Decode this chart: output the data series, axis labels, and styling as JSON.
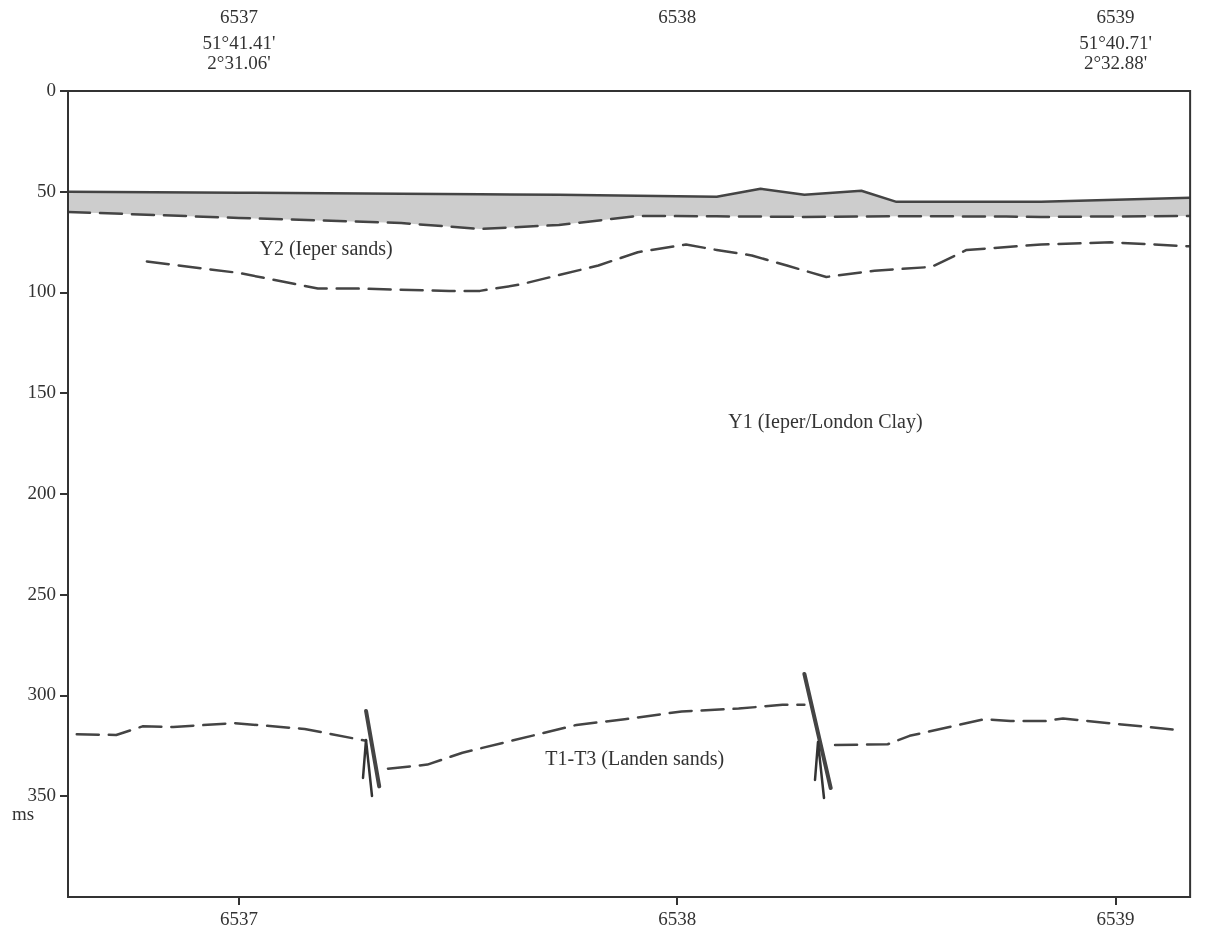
{
  "chart_data": {
    "type": "line",
    "xlim": [
      6536.61,
      6539.17
    ],
    "xticks": [
      6537,
      6538,
      6539
    ],
    "x2lim": [
      6536.61,
      6539.17
    ],
    "x2ticks": [
      6537,
      6538,
      6539
    ],
    "ylim": [
      400,
      0
    ],
    "yticks": [
      0,
      50,
      100,
      150,
      200,
      250,
      300,
      350
    ],
    "ylabel": "ms",
    "grid": false,
    "legend": false,
    "marker": "none",
    "series": [
      {
        "type": "line",
        "color": "#444444",
        "line_style": "solid",
        "x": [
          6536.61,
          6537.0,
          6537.37,
          6537.55,
          6537.73,
          6537.91,
          6538.09,
          6538.19,
          6538.29,
          6538.42,
          6538.5,
          6538.75,
          6538.83,
          6539.17
        ],
        "values": [
          50,
          50.5,
          51,
          51.2,
          51.5,
          52,
          52.5,
          48.5,
          51.5,
          49.5,
          55,
          55,
          55,
          53
        ]
      },
      {
        "type": "area",
        "color": "#444444",
        "line_style": "dashed",
        "x": [
          6536.61,
          6537.0,
          6537.37,
          6537.55,
          6537.73,
          6537.91,
          6538.09,
          6538.19,
          6538.29,
          6538.42,
          6538.5,
          6538.75,
          6538.83,
          6539.17
        ],
        "values": [
          60,
          63,
          65.5,
          68.5,
          66.5,
          62,
          62.2,
          62.3,
          62.5,
          62.3,
          62.1,
          62.3,
          62.5,
          62
        ]
      },
      {
        "type": "line",
        "color": "#444444",
        "line_style": "dashed",
        "x": [
          6536.79,
          6536.93,
          6537.0,
          6537.18,
          6537.26,
          6537.48,
          6537.55,
          6537.64,
          6537.82,
          6537.91,
          6538.02,
          6538.09,
          6538.17,
          6538.25,
          6538.34,
          6538.45,
          6538.58,
          6538.66,
          6538.83,
          6538.99,
          6539.17
        ],
        "values": [
          84.6,
          88.4,
          90.3,
          98,
          98,
          99.2,
          99.2,
          96.1,
          86.6,
          80,
          76.2,
          78.9,
          81.6,
          86.6,
          92.3,
          89.2,
          87.3,
          78.9,
          76.2,
          75.1,
          77.1
        ]
      },
      {
        "type": "line",
        "color": "#444444",
        "line_style": "dashed",
        "x": [
          6536.63,
          6536.72,
          6536.78,
          6536.85,
          6536.99,
          6537.15,
          6537.29,
          6537.31,
          6537.34,
          6537.43,
          6537.51,
          6537.77,
          6537.88,
          6538.01,
          6538.14,
          6538.24,
          6538.29,
          6538.32,
          6538.36,
          6538.48,
          6538.53,
          6538.7,
          6538.76,
          6538.84,
          6538.88,
          6539.13
        ],
        "values": [
          319.2,
          319.6,
          315.3,
          315.6,
          313.7,
          316.6,
          322.5,
          null,
          336.3,
          334.3,
          328.4,
          314.6,
          311.8,
          307.9,
          306.5,
          304.6,
          304.6,
          null,
          324.6,
          324.2,
          320,
          311.8,
          312.7,
          312.7,
          311.4,
          316.9
        ]
      },
      {
        "type": "line",
        "color": "#444444",
        "line_style": "solid",
        "x": [
          6537.29,
          6537.32
        ],
        "values": [
          307.7,
          345.1
        ]
      },
      {
        "type": "line",
        "color": "#444444",
        "line_style": "solid",
        "x": [
          6538.29,
          6538.35
        ],
        "values": [
          289.3,
          345.9
        ]
      }
    ],
    "annotations": [
      "Y2 (Ieper sands)",
      "Y1 (Ieper/London Clay)",
      "T1-T3 (Landen sands)",
      "51°41.41'\n2°31.06'",
      "51°40.71'\n2°32.88'"
    ]
  }
}
